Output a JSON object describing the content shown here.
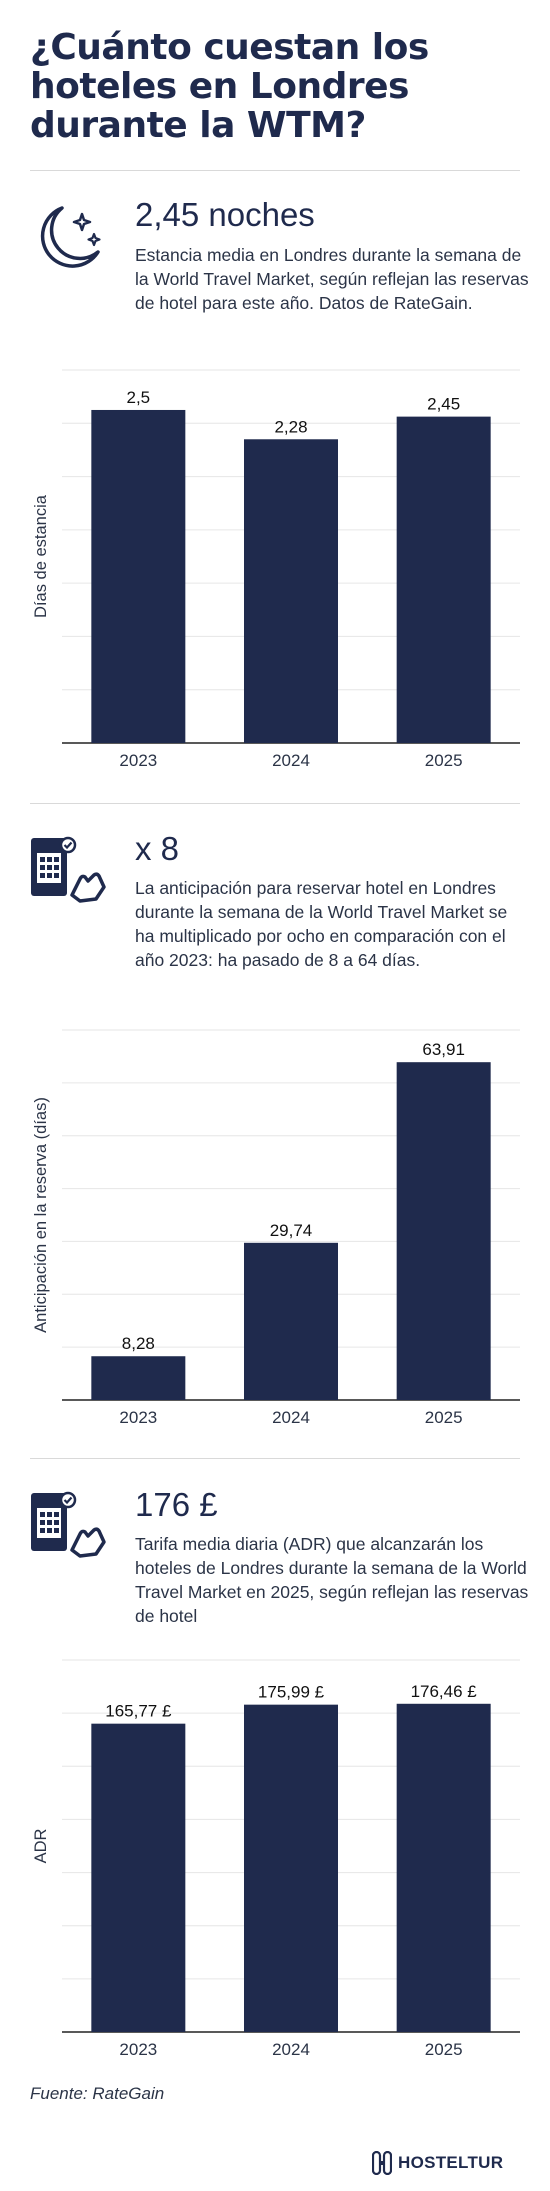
{
  "title": "¿Cuánto cuestan los hoteles en Londres durante la WTM?",
  "colors": {
    "bar": "#1f2a4d",
    "text": "#1f2a4d",
    "grid": "#e6e6e6"
  },
  "sections": [
    {
      "icon": "moon-stars-icon",
      "stat": "2,45 noches",
      "description": "Estancia media en Londres durante la semana de la World Travel Market, según reflejan las reservas de hotel para este año. Datos de RateGain."
    },
    {
      "icon": "hotel-booking-icon",
      "stat": "x 8",
      "description": "La anticipación para reservar hotel en Londres durante la semana de la World Travel Market se ha multiplicado por ocho en comparación con el año 2023: ha pasado de 8 a 64 días."
    },
    {
      "icon": "hotel-booking-icon",
      "stat": "176 £",
      "description": "Tarifa media diaria (ADR) que alcanzarán los hoteles de Londres durante la semana de la World Travel Market en 2025, según reflejan las reservas de hotel"
    }
  ],
  "chart_data": [
    {
      "type": "bar",
      "categories": [
        "2023",
        "2024",
        "2025"
      ],
      "values": [
        2.5,
        2.28,
        2.45
      ],
      "value_labels": [
        "2,5",
        "2,28",
        "2,45"
      ],
      "ylabel": "Días de estancia",
      "ylim": [
        0,
        2.8
      ],
      "grid": true
    },
    {
      "type": "bar",
      "categories": [
        "2023",
        "2024",
        "2025"
      ],
      "values": [
        8.28,
        29.74,
        63.91
      ],
      "value_labels": [
        "8,28",
        "29,74",
        "63,91"
      ],
      "ylabel": "Anticipación en la reserva (días)",
      "ylim": [
        0,
        70
      ],
      "grid": true
    },
    {
      "type": "bar",
      "categories": [
        "2023",
        "2024",
        "2025"
      ],
      "values": [
        165.77,
        175.99,
        176.46
      ],
      "value_labels": [
        "165,77 £",
        "175,99 £",
        "176,46 £"
      ],
      "ylabel": "ADR",
      "ylim": [
        0,
        200
      ],
      "grid": true
    }
  ],
  "footer": {
    "source": "Fuente: RateGain",
    "brand": "HOSTELTUR"
  }
}
